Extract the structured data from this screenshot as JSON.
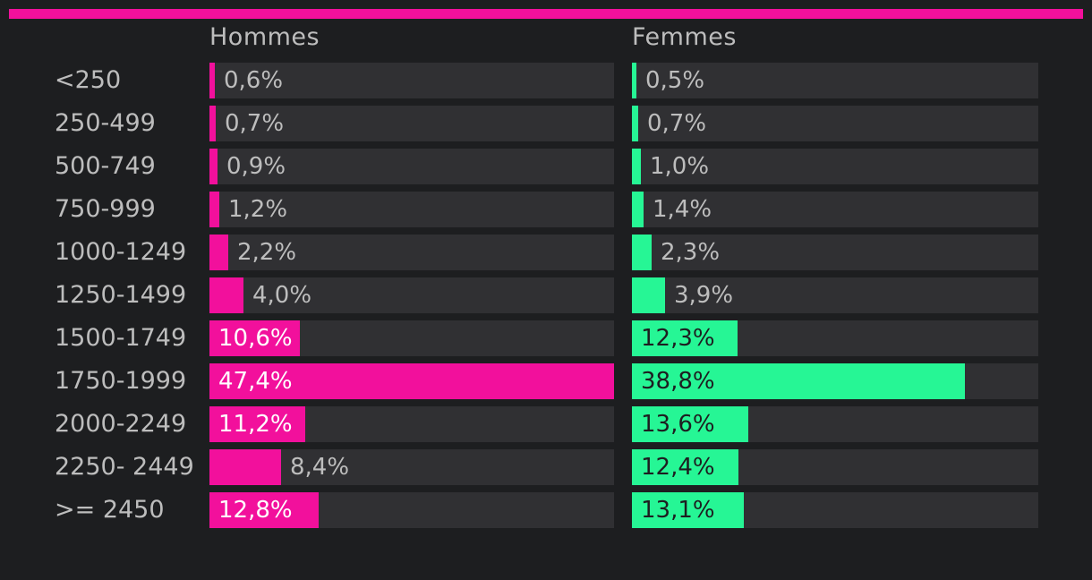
{
  "colors": {
    "accent": "#f2109c",
    "men": "#f2109c",
    "women": "#26f695",
    "track": "#303033",
    "background": "#1d1e20",
    "label": "#bdbdbd",
    "inside_label_men": "#ffffff",
    "inside_label_women": "#1d1e20"
  },
  "chart_data": {
    "type": "bar",
    "orientation": "horizontal",
    "categories": [
      "<250",
      "250-499",
      "500-749",
      "750-999",
      "1000-1249",
      "1250-1499",
      "1500-1749",
      "1750-1999",
      "2000-2249",
      "2250- 2449",
      ">= 2450"
    ],
    "series": [
      {
        "name": "Hommes",
        "values": [
          0.6,
          0.7,
          0.9,
          1.2,
          2.2,
          4.0,
          10.6,
          47.4,
          11.2,
          8.4,
          12.8
        ],
        "labels": [
          "0,6%",
          "0,7%",
          "0,9%",
          "1,2%",
          "2,2%",
          "4,0%",
          "10,6%",
          "47,4%",
          "11,2%",
          "8,4%",
          "12,8%"
        ]
      },
      {
        "name": "Femmes",
        "values": [
          0.5,
          0.7,
          1.0,
          1.4,
          2.3,
          3.9,
          12.3,
          38.8,
          13.6,
          12.4,
          13.1
        ],
        "labels": [
          "0,5%",
          "0,7%",
          "1,0%",
          "1,4%",
          "2,3%",
          "3,9%",
          "12,3%",
          "38,8%",
          "13,6%",
          "12,4%",
          "13,1%"
        ]
      }
    ],
    "xlim": [
      0,
      47.4
    ],
    "grid": false,
    "legend": "none"
  }
}
